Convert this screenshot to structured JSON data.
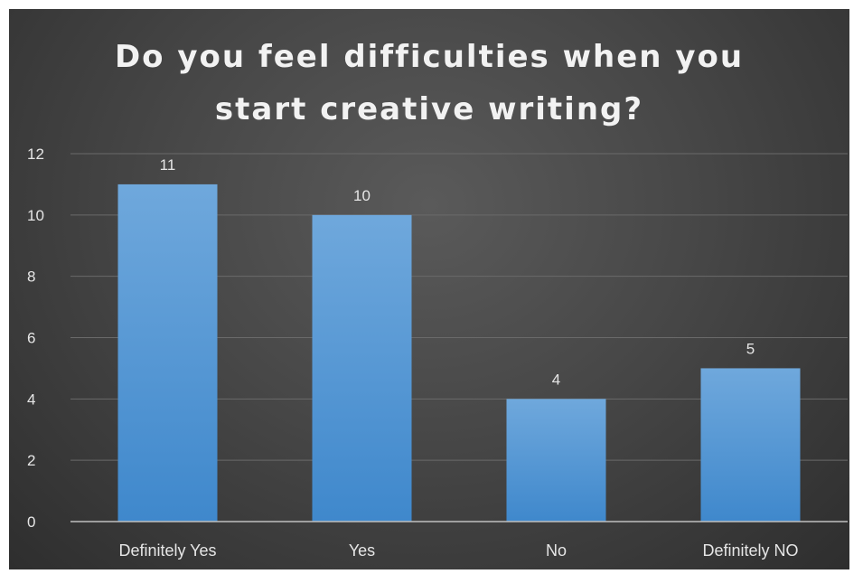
{
  "chart_data": {
    "type": "bar",
    "title": "Do you feel difficulties when you start creative writing?",
    "title_lines": [
      "Do you feel difficulties when you",
      "start creative writing?"
    ],
    "categories": [
      "Definitely Yes",
      "Yes",
      "No",
      "Definitely NO"
    ],
    "values": [
      11,
      10,
      4,
      5
    ],
    "data_labels": [
      "11",
      "10",
      "4",
      "5"
    ],
    "yticks": [
      "0",
      "2",
      "4",
      "6",
      "8",
      "10",
      "12"
    ],
    "ylim": [
      0,
      12
    ],
    "xlabel": "",
    "ylabel": "",
    "grid": true,
    "legend": "none",
    "colors": {
      "bar_top": "#6fa8dc",
      "bar_bottom": "#3f88cc",
      "gridline": "#6a6a6a",
      "axis": "#bfbfbf",
      "text": "#e6e6e6",
      "background": "#474747"
    }
  }
}
